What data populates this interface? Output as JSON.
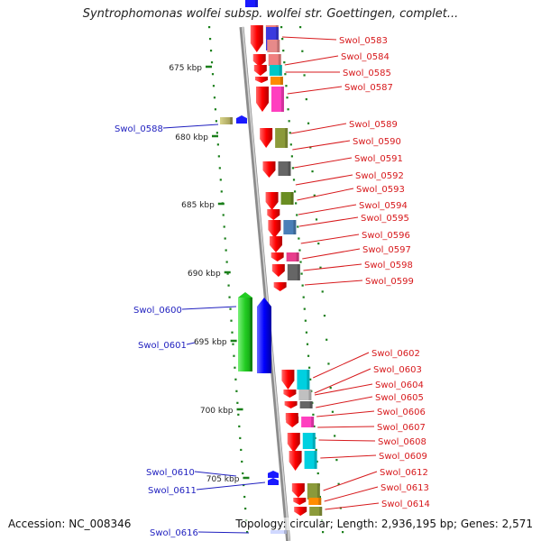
{
  "title": "Syntrophomonas wolfei subsp. wolfei str. Goettingen, complet...",
  "footer": {
    "accession": "Accession: NC_008346",
    "summary": "Topology: circular; Length: 2,936,195 bp; Genes: 2,571"
  },
  "colors": {
    "forward_label": "#d7191c",
    "reverse_label": "#1f1fbf",
    "backbone": "#8c8c8c",
    "scale_green": "#1a7f1a"
  },
  "scale_labels": [
    "675 kbp",
    "680 kbp",
    "685 kbp",
    "690 kbp",
    "695 kbp",
    "700 kbp",
    "705 kbp"
  ],
  "forward_genes": [
    "Swol_0583",
    "Swol_0584",
    "Swol_0585",
    "Swol_0587",
    "Swol_0589",
    "Swol_0590",
    "Swol_0591",
    "Swol_0592",
    "Swol_0593",
    "Swol_0594",
    "Swol_0595",
    "Swol_0596",
    "Swol_0597",
    "Swol_0598",
    "Swol_0599",
    "Swol_0602",
    "Swol_0603",
    "Swol_0604",
    "Swol_0605",
    "Swol_0606",
    "Swol_0607",
    "Swol_0608",
    "Swol_0609",
    "Swol_0612",
    "Swol_0613",
    "Swol_0614"
  ],
  "reverse_genes": [
    "Swol_0588",
    "Swol_0600",
    "Swol_0601",
    "Swol_0610",
    "Swol_0611",
    "Swol_0616"
  ],
  "category_colors": [
    "#e83e8c",
    "#f08080",
    "#00c8c8",
    "#ff8c00",
    "#ff3fbf",
    "#8b9a3a",
    "#666666",
    "#6b8e23",
    "#4a7fb8",
    "#c0c0c0",
    "#00d0e0",
    "#d0b0ff",
    "#b0a060"
  ]
}
